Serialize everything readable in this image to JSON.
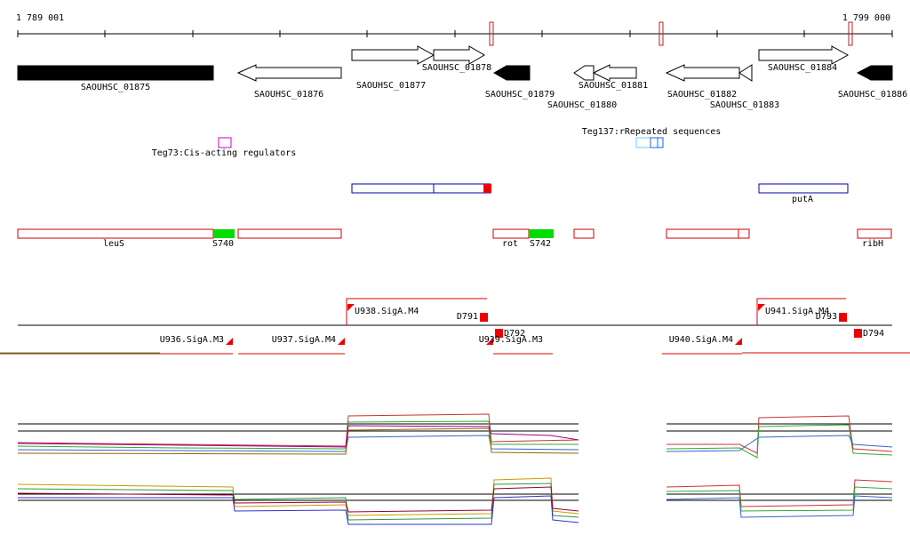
{
  "ruler": {
    "start": "1 789 001",
    "end": "1 799 000"
  },
  "genes": [
    "SAOUHSC_01875",
    "SAOUHSC_01876",
    "SAOUHSC_01877",
    "SAOUHSC_01878",
    "SAOUHSC_01879",
    "SAOUHSC_01880",
    "SAOUHSC_01881",
    "SAOUHSC_01882",
    "SAOUHSC_01883",
    "SAOUHSC_01884",
    "SAOUHSC_01886"
  ],
  "features": {
    "teg73": "Teg73:Cis-acting regulators",
    "teg137": "Teg137:rRepeated sequences",
    "operon": "putA"
  },
  "regions": [
    "leuS",
    "S740",
    "rot",
    "S742",
    "ribH"
  ],
  "promoters": [
    "U938.SigA.M4",
    "D791",
    "D792",
    "U936.SigA.M3",
    "U937.SigA.M4",
    "U939.SigA.M3",
    "U940.SigA.M4",
    "U941.SigA.M4",
    "D793",
    "D794"
  ]
}
